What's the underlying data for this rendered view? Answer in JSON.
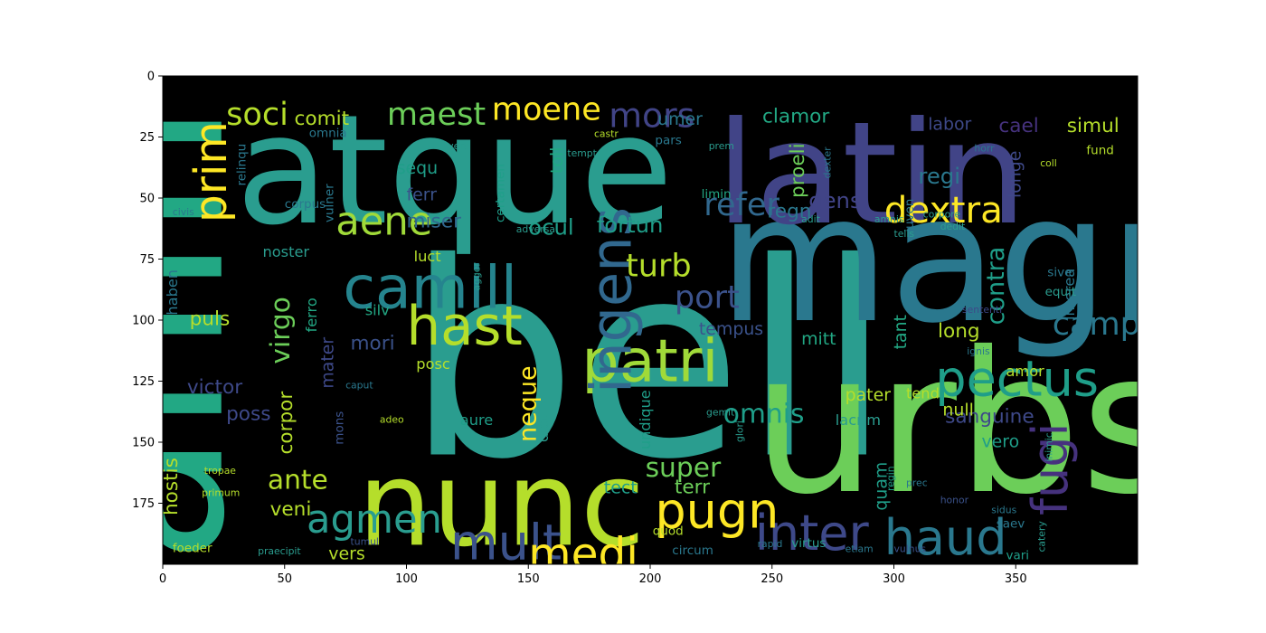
{
  "chart_data": {
    "type": "wordcloud",
    "title": "",
    "xlabel": "",
    "ylabel": "",
    "xlim": [
      0,
      400
    ],
    "ylim": [
      200,
      0
    ],
    "x_ticks": [
      "0",
      "50",
      "100",
      "150",
      "200",
      "250",
      "300",
      "350"
    ],
    "y_ticks": [
      "0",
      "25",
      "50",
      "75",
      "100",
      "125",
      "150",
      "175"
    ],
    "background_color": "#000000",
    "colormap": "viridis",
    "words": [
      {
        "text": "bell",
        "x": 100,
        "y": 155,
        "size": 110,
        "color": "#2a9d8f"
      },
      {
        "text": "urbs",
        "x": 242,
        "y": 170,
        "size": 80,
        "color": "#6cce59"
      },
      {
        "text": "anim",
        "x": 24,
        "y": 200,
        "size": 88,
        "color": "#22a884",
        "rotate": -90
      },
      {
        "text": "magn",
        "x": 228,
        "y": 100,
        "size": 72,
        "color": "#2a788e"
      },
      {
        "text": "atque",
        "x": 30,
        "y": 60,
        "size": 62,
        "color": "#2a9d8f"
      },
      {
        "text": "latin",
        "x": 227,
        "y": 60,
        "size": 58,
        "color": "#414487"
      },
      {
        "text": "nunc",
        "x": 80,
        "y": 192,
        "size": 48,
        "color": "#b5de2b"
      },
      {
        "text": "camill",
        "x": 74,
        "y": 95,
        "size": 24,
        "color": "#25848e"
      },
      {
        "text": "patri",
        "x": 172,
        "y": 125,
        "size": 24,
        "color": "#a0da39"
      },
      {
        "text": "pectus",
        "x": 317,
        "y": 131,
        "size": 20,
        "color": "#1f9e89"
      },
      {
        "text": "ingens",
        "x": 192,
        "y": 130,
        "size": 23,
        "color": "#31688e",
        "rotate": -90
      },
      {
        "text": "hast",
        "x": 100,
        "y": 110,
        "size": 22,
        "color": "#b5de2b"
      },
      {
        "text": "inter",
        "x": 243,
        "y": 194,
        "size": 20,
        "color": "#3e4989"
      },
      {
        "text": "haud",
        "x": 296,
        "y": 196,
        "size": 20,
        "color": "#2a788e"
      },
      {
        "text": "mult",
        "x": 118,
        "y": 198,
        "size": 20,
        "color": "#3b528b"
      },
      {
        "text": "medi",
        "x": 150,
        "y": 202,
        "size": 18,
        "color": "#fde725"
      },
      {
        "text": "pugn",
        "x": 202,
        "y": 185,
        "size": 20,
        "color": "#fde725"
      },
      {
        "text": "fugi",
        "x": 371,
        "y": 180,
        "size": 20,
        "color": "#46327e",
        "rotate": -90
      },
      {
        "text": "prim",
        "x": 26,
        "y": 60,
        "size": 18,
        "color": "#fde725",
        "rotate": -90
      },
      {
        "text": "aene",
        "x": 71,
        "y": 65,
        "size": 16,
        "color": "#a0da39"
      },
      {
        "text": "agmen",
        "x": 59,
        "y": 187,
        "size": 16,
        "color": "#2a9d8f"
      },
      {
        "text": "dextra",
        "x": 296,
        "y": 60,
        "size": 15,
        "color": "#fde725"
      },
      {
        "text": "soci",
        "x": 26,
        "y": 20,
        "size": 13,
        "color": "#b5de2b"
      },
      {
        "text": "maest",
        "x": 92,
        "y": 20,
        "size": 13,
        "color": "#6cce59"
      },
      {
        "text": "moene",
        "x": 135,
        "y": 18,
        "size": 13,
        "color": "#fde725"
      },
      {
        "text": "mors",
        "x": 183,
        "y": 21,
        "size": 14,
        "color": "#414487"
      },
      {
        "text": "refer",
        "x": 222,
        "y": 57,
        "size": 13,
        "color": "#31688e"
      },
      {
        "text": "turb",
        "x": 190,
        "y": 82,
        "size": 13,
        "color": "#b5de2b"
      },
      {
        "text": "port",
        "x": 210,
        "y": 95,
        "size": 13,
        "color": "#3b528b"
      },
      {
        "text": "camp",
        "x": 365,
        "y": 106,
        "size": 13,
        "color": "#2a788e"
      },
      {
        "text": "omnis",
        "x": 230,
        "y": 142,
        "size": 11,
        "color": "#1f9e89"
      },
      {
        "text": "super",
        "x": 198,
        "y": 164,
        "size": 11,
        "color": "#6cce59"
      },
      {
        "text": "ante",
        "x": 43,
        "y": 169,
        "size": 11,
        "color": "#b5de2b"
      },
      {
        "text": "virgo",
        "x": 52,
        "y": 118,
        "size": 11,
        "color": "#6cce59",
        "rotate": -90
      },
      {
        "text": "contra",
        "x": 345,
        "y": 102,
        "size": 10,
        "color": "#1f9e89",
        "rotate": -90
      },
      {
        "text": "neque",
        "x": 153,
        "y": 150,
        "size": 10,
        "color": "#fde725",
        "rotate": -90
      },
      {
        "text": "sanguine",
        "x": 321,
        "y": 142,
        "size": 8,
        "color": "#3e4989"
      },
      {
        "text": "comit",
        "x": 54,
        "y": 20,
        "size": 8,
        "color": "#b5de2b"
      },
      {
        "text": "clamor",
        "x": 246,
        "y": 19,
        "size": 8,
        "color": "#22a884"
      },
      {
        "text": "labor",
        "x": 314,
        "y": 22,
        "size": 7,
        "color": "#3e4989"
      },
      {
        "text": "cael",
        "x": 343,
        "y": 23,
        "size": 8,
        "color": "#46327e"
      },
      {
        "text": "simul",
        "x": 371,
        "y": 23,
        "size": 8,
        "color": "#b5de2b"
      },
      {
        "text": "miser",
        "x": 100,
        "y": 62,
        "size": 8,
        "color": "#31688e"
      },
      {
        "text": "ocul",
        "x": 150,
        "y": 65,
        "size": 9,
        "color": "#1f9e89"
      },
      {
        "text": "fortun",
        "x": 178,
        "y": 64,
        "size": 9,
        "color": "#1f9e89"
      },
      {
        "text": "ferr",
        "x": 100,
        "y": 51,
        "size": 7,
        "color": "#3b528b"
      },
      {
        "text": "sequ",
        "x": 96,
        "y": 40,
        "size": 7,
        "color": "#1f9e89"
      },
      {
        "text": "regi",
        "x": 310,
        "y": 44,
        "size": 9,
        "color": "#2a788e"
      },
      {
        "text": "gens",
        "x": 265,
        "y": 54,
        "size": 9,
        "color": "#414487"
      },
      {
        "text": "regn",
        "x": 248,
        "y": 58,
        "size": 8,
        "color": "#2a788e"
      },
      {
        "text": "proeli",
        "x": 263,
        "y": 50,
        "size": 8,
        "color": "#6cce59",
        "rotate": -90
      },
      {
        "text": "longe",
        "x": 352,
        "y": 50,
        "size": 7,
        "color": "#3e4989",
        "rotate": -90
      },
      {
        "text": "puls",
        "x": 11,
        "y": 102,
        "size": 8,
        "color": "#b5de2b"
      },
      {
        "text": "mori",
        "x": 77,
        "y": 112,
        "size": 8,
        "color": "#3b528b"
      },
      {
        "text": "long",
        "x": 318,
        "y": 107,
        "size": 8,
        "color": "#b5de2b"
      },
      {
        "text": "tempus",
        "x": 220,
        "y": 106,
        "size": 7,
        "color": "#3b528b"
      },
      {
        "text": "mitt",
        "x": 262,
        "y": 110,
        "size": 7,
        "color": "#22a884"
      },
      {
        "text": "victor",
        "x": 10,
        "y": 130,
        "size": 8,
        "color": "#3e4989"
      },
      {
        "text": "poss",
        "x": 26,
        "y": 141,
        "size": 8,
        "color": "#3e4989"
      },
      {
        "text": "pater",
        "x": 280,
        "y": 133,
        "size": 7,
        "color": "#b5de2b"
      },
      {
        "text": "null",
        "x": 320,
        "y": 139,
        "size": 7,
        "color": "#b5de2b"
      },
      {
        "text": "veni",
        "x": 44,
        "y": 180,
        "size": 8,
        "color": "#b5de2b"
      },
      {
        "text": "terr",
        "x": 210,
        "y": 171,
        "size": 8,
        "color": "#6cce59"
      },
      {
        "text": "vers",
        "x": 68,
        "y": 198,
        "size": 7,
        "color": "#b5de2b"
      },
      {
        "text": "hostis",
        "x": 6,
        "y": 180,
        "size": 8,
        "color": "#b5de2b",
        "rotate": -90
      },
      {
        "text": "corpor",
        "x": 53,
        "y": 155,
        "size": 8,
        "color": "#b5de2b",
        "rotate": -90
      },
      {
        "text": "mater",
        "x": 70,
        "y": 128,
        "size": 7,
        "color": "#3e4989",
        "rotate": -90
      },
      {
        "text": "tant",
        "x": 305,
        "y": 112,
        "size": 7,
        "color": "#22a884",
        "rotate": -90
      },
      {
        "text": "quam",
        "x": 297,
        "y": 178,
        "size": 7,
        "color": "#1f9e89",
        "rotate": -90
      },
      {
        "text": "vero",
        "x": 336,
        "y": 152,
        "size": 7,
        "color": "#1f9e89"
      },
      {
        "text": "umer",
        "x": 203,
        "y": 20,
        "size": 7,
        "color": "#2a788e"
      },
      {
        "text": "toll",
        "x": 164,
        "y": 40,
        "size": 7,
        "color": "#22a884",
        "rotate": -90
      },
      {
        "text": "haben",
        "x": 6,
        "y": 98,
        "size": 6,
        "color": "#2a788e",
        "rotate": -90
      },
      {
        "text": "noster",
        "x": 41,
        "y": 74,
        "size": 6,
        "color": "#2a9d8f"
      },
      {
        "text": "luct",
        "x": 103,
        "y": 76,
        "size": 6,
        "color": "#b5de2b"
      },
      {
        "text": "silv",
        "x": 83,
        "y": 98,
        "size": 6,
        "color": "#22a884"
      },
      {
        "text": "ferro",
        "x": 63,
        "y": 105,
        "size": 6,
        "color": "#22a884",
        "rotate": -90
      },
      {
        "text": "posc",
        "x": 104,
        "y": 120,
        "size": 6,
        "color": "#b5de2b"
      },
      {
        "text": "aure",
        "x": 122,
        "y": 143,
        "size": 6,
        "color": "#1f9e89"
      },
      {
        "text": "dict",
        "x": 158,
        "y": 150,
        "size": 6,
        "color": "#2a9d8f",
        "rotate": -90
      },
      {
        "text": "tect",
        "x": 181,
        "y": 171,
        "size": 7,
        "color": "#1f9e89"
      },
      {
        "text": "undique",
        "x": 200,
        "y": 153,
        "size": 6,
        "color": "#1f9e89",
        "rotate": -90
      },
      {
        "text": "amor",
        "x": 346,
        "y": 123,
        "size": 6,
        "color": "#b5de2b"
      },
      {
        "text": "tend",
        "x": 305,
        "y": 132,
        "size": 6,
        "color": "#b5de2b"
      },
      {
        "text": "lacrim",
        "x": 276,
        "y": 143,
        "size": 6,
        "color": "#2a9d8f"
      },
      {
        "text": "interea",
        "x": 374,
        "y": 100,
        "size": 6,
        "color": "#2a788e",
        "rotate": -90
      },
      {
        "text": "equit",
        "x": 362,
        "y": 90,
        "size": 5,
        "color": "#2a9d8f"
      },
      {
        "text": "sive",
        "x": 363,
        "y": 82,
        "size": 5,
        "color": "#2a788e"
      },
      {
        "text": "mons",
        "x": 74,
        "y": 151,
        "size": 5,
        "color": "#3b528b",
        "rotate": -90
      },
      {
        "text": "pars",
        "x": 202,
        "y": 28,
        "size": 5,
        "color": "#2a788e"
      },
      {
        "text": "castr",
        "x": 177,
        "y": 25,
        "size": 4,
        "color": "#b5de2b"
      },
      {
        "text": "omnia",
        "x": 60,
        "y": 25,
        "size": 5,
        "color": "#2a788e"
      },
      {
        "text": "relinqu",
        "x": 34,
        "y": 45,
        "size": 5,
        "color": "#2a788e",
        "rotate": -90
      },
      {
        "text": "corpus",
        "x": 50,
        "y": 54,
        "size": 5,
        "color": "#2a788e"
      },
      {
        "text": "vulner",
        "x": 70,
        "y": 60,
        "size": 5,
        "color": "#2a788e",
        "rotate": -90
      },
      {
        "text": "certamen",
        "x": 140,
        "y": 60,
        "size": 5,
        "color": "#1f9e89",
        "rotate": -90
      },
      {
        "text": "limin",
        "x": 221,
        "y": 50,
        "size": 5,
        "color": "#22a884"
      },
      {
        "text": "juven",
        "x": 308,
        "y": 64,
        "size": 5,
        "color": "#2a788e",
        "rotate": -90
      },
      {
        "text": "sententi",
        "x": 328,
        "y": 97,
        "size": 4,
        "color": "#3e4989"
      },
      {
        "text": "fund",
        "x": 379,
        "y": 32,
        "size": 5,
        "color": "#b5de2b"
      },
      {
        "text": "coll",
        "x": 360,
        "y": 37,
        "size": 4,
        "color": "#b5de2b"
      },
      {
        "text": "horr",
        "x": 333,
        "y": 31,
        "size": 4,
        "color": "#2a788e"
      },
      {
        "text": "dexter",
        "x": 274,
        "y": 42,
        "size": 4,
        "color": "#2a788e",
        "rotate": -90
      },
      {
        "text": "civis",
        "x": 4,
        "y": 57,
        "size": 4,
        "color": "#2a788e"
      },
      {
        "text": "ignis",
        "x": 330,
        "y": 114,
        "size": 4,
        "color": "#2a788e"
      },
      {
        "text": "sidus",
        "x": 340,
        "y": 179,
        "size": 4,
        "color": "#2a788e"
      },
      {
        "text": "saev",
        "x": 342,
        "y": 185,
        "size": 5,
        "color": "#2a788e"
      },
      {
        "text": "vari",
        "x": 346,
        "y": 198,
        "size": 5,
        "color": "#1f9e89"
      },
      {
        "text": "honor",
        "x": 319,
        "y": 175,
        "size": 4,
        "color": "#3b528b"
      },
      {
        "text": "prec",
        "x": 305,
        "y": 168,
        "size": 4,
        "color": "#2a788e"
      },
      {
        "text": "regin",
        "x": 300,
        "y": 170,
        "size": 4,
        "color": "#1f9e89",
        "rotate": -90
      },
      {
        "text": "virtus",
        "x": 258,
        "y": 193,
        "size": 5,
        "color": "#2a9d8f"
      },
      {
        "text": "circum",
        "x": 209,
        "y": 196,
        "size": 5,
        "color": "#2a788e"
      },
      {
        "text": "rapid",
        "x": 244,
        "y": 193,
        "size": 4,
        "color": "#2a788e"
      },
      {
        "text": "quod",
        "x": 201,
        "y": 188,
        "size": 5,
        "color": "#b5de2b"
      },
      {
        "text": "etiam",
        "x": 280,
        "y": 195,
        "size": 4,
        "color": "#2a788e"
      },
      {
        "text": "vulnus",
        "x": 300,
        "y": 195,
        "size": 4,
        "color": "#3b528b"
      },
      {
        "text": "caput",
        "x": 75,
        "y": 128,
        "size": 4,
        "color": "#2a788e"
      },
      {
        "text": "adeo",
        "x": 89,
        "y": 142,
        "size": 4,
        "color": "#b5de2b"
      },
      {
        "text": "tropae",
        "x": 17,
        "y": 163,
        "size": 4,
        "color": "#b5de2b"
      },
      {
        "text": "primum",
        "x": 16,
        "y": 172,
        "size": 4,
        "color": "#b5de2b"
      },
      {
        "text": "foeder",
        "x": 4,
        "y": 195,
        "size": 5,
        "color": "#b5de2b"
      },
      {
        "text": "praecipit",
        "x": 39,
        "y": 196,
        "size": 4,
        "color": "#2a9d8f"
      },
      {
        "text": "tumul",
        "x": 77,
        "y": 192,
        "size": 4,
        "color": "#3b528b"
      },
      {
        "text": "catery",
        "x": 362,
        "y": 195,
        "size": 4,
        "color": "#2a9d8f",
        "rotate": -90
      },
      {
        "text": "inimic",
        "x": 365,
        "y": 158,
        "size": 4,
        "color": "#2a9d8f",
        "rotate": -90
      },
      {
        "text": "adit",
        "x": 262,
        "y": 60,
        "size": 4,
        "color": "#2a9d8f"
      },
      {
        "text": "amnis",
        "x": 292,
        "y": 60,
        "size": 4,
        "color": "#2a9d8f"
      },
      {
        "text": "dedit",
        "x": 319,
        "y": 63,
        "size": 4,
        "color": "#2a9d8f"
      },
      {
        "text": "corpore",
        "x": 312,
        "y": 58,
        "size": 4,
        "color": "#2a9d8f"
      },
      {
        "text": "telis",
        "x": 300,
        "y": 66,
        "size": 4,
        "color": "#2a9d8f"
      },
      {
        "text": "adversa",
        "x": 145,
        "y": 64,
        "size": 4,
        "color": "#2a9d8f"
      },
      {
        "text": "vert",
        "x": 117,
        "y": 30,
        "size": 4,
        "color": "#2a9d8f"
      },
      {
        "text": "tempt",
        "x": 166,
        "y": 33,
        "size": 4,
        "color": "#2a9d8f"
      },
      {
        "text": "prem",
        "x": 224,
        "y": 30,
        "size": 4,
        "color": "#2a9d8f"
      },
      {
        "text": "agger",
        "x": 130,
        "y": 88,
        "size": 4,
        "color": "#2a9d8f",
        "rotate": -90
      },
      {
        "text": "glori",
        "x": 238,
        "y": 150,
        "size": 4,
        "color": "#2a9d8f",
        "rotate": -90
      },
      {
        "text": "gemit",
        "x": 223,
        "y": 139,
        "size": 4,
        "color": "#2a9d8f"
      }
    ]
  }
}
